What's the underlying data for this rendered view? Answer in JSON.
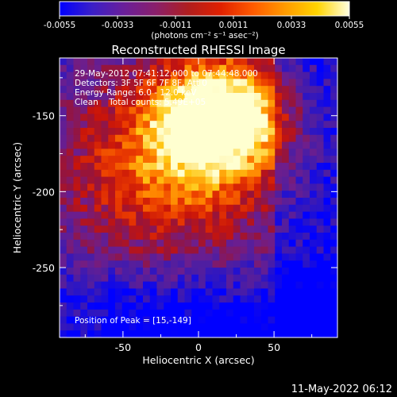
{
  "colorbar": {
    "ticks": [
      "-0.0055",
      "-0.0033",
      "-0.0011",
      "0.0011",
      "0.0033",
      "0.0055"
    ],
    "unit_label": "(photons cm⁻² s⁻¹ asec⁻²)",
    "gradient": [
      "#0000ff",
      "#3a1fc8",
      "#6a1f9a",
      "#8a1f6a",
      "#b01e1e",
      "#e02000",
      "#ff5a00",
      "#ff9a00",
      "#ffd400",
      "#ffffe0"
    ]
  },
  "chart_data": {
    "type": "heatmap",
    "title": "Reconstructed RHESSI Image",
    "xlabel": "Heliocentric X (arcsec)",
    "ylabel": "Heliocentric Y (arcsec)",
    "xlim": [
      -92,
      92
    ],
    "ylim": [
      -296,
      -112
    ],
    "x_ticks": [
      "-50",
      "0",
      "50"
    ],
    "y_ticks": [
      "-150",
      "-200",
      "-250"
    ],
    "y_tick_values": [
      -150,
      -200,
      -250
    ],
    "x_tick_values": [
      -50,
      0,
      50
    ],
    "peak": [
      15,
      -149
    ],
    "annotations": [
      "29-May-2012 07:41:12.000 to 07:44:48.000",
      "Detectors: 3F 5F 6F 7F 8F, Att 0",
      "Energy Range: 6.0 - 12.0 keV",
      "Clean    Total counts: 5.49E+05"
    ],
    "peak_label": "Position of Peak = [15,-149]"
  },
  "footer": {
    "timestamp": "11-May-2022 06:12"
  }
}
